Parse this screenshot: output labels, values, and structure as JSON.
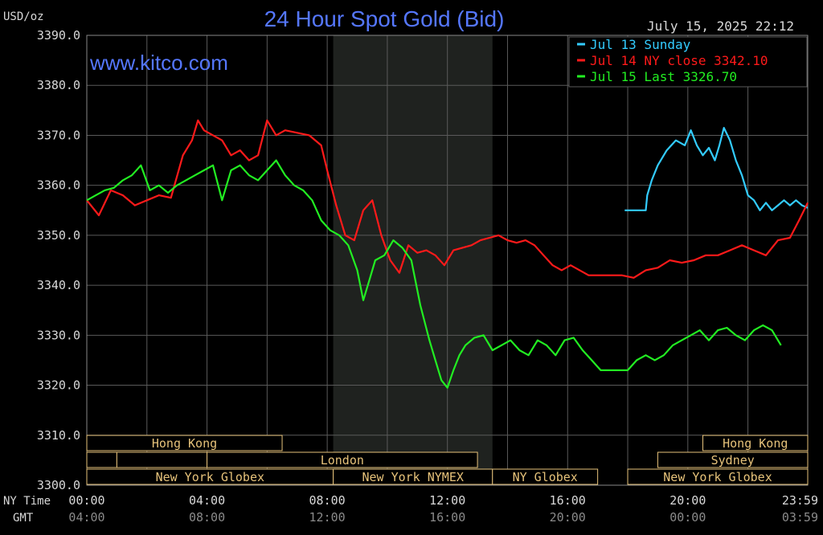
{
  "chart_data": {
    "type": "line",
    "title": "24 Hour Spot Gold (Bid)",
    "unit_label": "USD/oz",
    "watermark": "www.kitco.com",
    "timestamp": "July 15, 2025 22:12",
    "ylim": [
      3300,
      3390
    ],
    "y_ticks": [
      "3390.0",
      "3380.0",
      "3370.0",
      "3360.0",
      "3350.0",
      "3340.0",
      "3330.0",
      "3320.0",
      "3310.0",
      "3300.0"
    ],
    "x_axis_labels": {
      "ny_time": "NY Time",
      "gmt": "GMT"
    },
    "x_ticks_ny": [
      "00:00",
      "04:00",
      "08:00",
      "12:00",
      "16:00",
      "20:00",
      "23:59"
    ],
    "x_ticks_gmt": [
      "04:00",
      "08:00",
      "12:00",
      "16:00",
      "20:00",
      "00:00",
      "03:59"
    ],
    "nymex_shade_hours": [
      8.2,
      13.5
    ],
    "legend_placement": "top-right",
    "colors": {
      "jul13": "#33ccff",
      "jul14": "#ff1a1a",
      "jul15": "#22ee22",
      "title": "#5577ff",
      "grid": "#5a5a5a",
      "axis_text": "#d8d8d8",
      "session": "#e6c27a"
    },
    "series": [
      {
        "name": "Jul 13 Sunday",
        "legend_text": "Jul 13 Sunday",
        "color_key": "jul13",
        "x": [
          17.9,
          18.6,
          18.65,
          18.8,
          19.0,
          19.3,
          19.6,
          19.9,
          20.1,
          20.3,
          20.5,
          20.7,
          20.9,
          21.05,
          21.2,
          21.4,
          21.6,
          21.8,
          22.0,
          22.2,
          22.4,
          22.6,
          22.8,
          23.0,
          23.2,
          23.4,
          23.6,
          23.8,
          23.99
        ],
        "y": [
          3355.0,
          3355.0,
          3358.0,
          3361.0,
          3364.0,
          3367.0,
          3369.0,
          3368.0,
          3371.0,
          3368.0,
          3366.0,
          3367.5,
          3365.0,
          3368.0,
          3371.5,
          3369.0,
          3365.0,
          3362.0,
          3358.0,
          3357.0,
          3355.0,
          3356.5,
          3355.0,
          3356.0,
          3357.0,
          3356.0,
          3357.0,
          3356.0,
          3355.5
        ]
      },
      {
        "name": "Jul 14 NY close 3342.10",
        "legend_text": "Jul 14 NY close 3342.10",
        "color_key": "jul14",
        "x": [
          0,
          0.4,
          0.8,
          1.2,
          1.6,
          2.0,
          2.4,
          2.8,
          3.2,
          3.5,
          3.7,
          3.9,
          4.2,
          4.5,
          4.8,
          5.1,
          5.4,
          5.7,
          6.0,
          6.3,
          6.6,
          7.0,
          7.4,
          7.8,
          8.0,
          8.3,
          8.6,
          8.9,
          9.2,
          9.5,
          9.8,
          10.1,
          10.4,
          10.7,
          11.0,
          11.3,
          11.6,
          11.9,
          12.2,
          12.5,
          12.8,
          13.1,
          13.4,
          13.7,
          14.0,
          14.3,
          14.6,
          14.9,
          15.2,
          15.5,
          15.8,
          16.1,
          16.4,
          16.7,
          17.0,
          17.4,
          17.8,
          18.2,
          18.6,
          19.0,
          19.4,
          19.8,
          20.2,
          20.6,
          21.0,
          21.4,
          21.8,
          22.2,
          22.6,
          23.0,
          23.4,
          23.7,
          23.99
        ],
        "y": [
          3357.0,
          3354.0,
          3359.0,
          3358.0,
          3356.0,
          3357.0,
          3358.0,
          3357.5,
          3366.0,
          3369.0,
          3373.0,
          3371.0,
          3370.0,
          3369.0,
          3366.0,
          3367.0,
          3365.0,
          3366.0,
          3373.0,
          3370.0,
          3371.0,
          3370.5,
          3370.0,
          3368.0,
          3363.0,
          3356.0,
          3350.0,
          3349.0,
          3355.0,
          3357.0,
          3350.0,
          3345.0,
          3342.5,
          3348.0,
          3346.5,
          3347.0,
          3346.0,
          3344.0,
          3347.0,
          3347.5,
          3348.0,
          3349.0,
          3349.5,
          3350.0,
          3349.0,
          3348.5,
          3349.0,
          3348.0,
          3346.0,
          3344.0,
          3343.0,
          3344.0,
          3343.0,
          3342.0,
          3342.0,
          3342.0,
          3342.0,
          3341.5,
          3343.0,
          3343.5,
          3345.0,
          3344.5,
          3345.0,
          3346.0,
          3346.0,
          3347.0,
          3348.0,
          3347.0,
          3346.0,
          3349.0,
          3349.5,
          3353.0,
          3356.5
        ]
      },
      {
        "name": "Jul 15 Last 3326.70",
        "legend_text": "Jul 15 Last 3326.70",
        "color_key": "jul15",
        "x": [
          0,
          0.3,
          0.6,
          0.9,
          1.2,
          1.5,
          1.8,
          2.1,
          2.4,
          2.7,
          3.0,
          3.3,
          3.6,
          3.9,
          4.2,
          4.5,
          4.8,
          5.1,
          5.4,
          5.7,
          6.0,
          6.3,
          6.6,
          6.9,
          7.2,
          7.5,
          7.8,
          8.1,
          8.4,
          8.7,
          9.0,
          9.2,
          9.4,
          9.6,
          9.9,
          10.2,
          10.5,
          10.8,
          11.1,
          11.4,
          11.6,
          11.8,
          12.0,
          12.2,
          12.4,
          12.6,
          12.9,
          13.2,
          13.5,
          13.8,
          14.1,
          14.4,
          14.7,
          15.0,
          15.3,
          15.6,
          15.9,
          16.2,
          16.5,
          16.8,
          17.1,
          17.4,
          17.7,
          18.0,
          18.3,
          18.6,
          18.9,
          19.2,
          19.5,
          19.8,
          20.1,
          20.4,
          20.7,
          21.0,
          21.3,
          21.6,
          21.9,
          22.2,
          22.5,
          22.8,
          23.1
        ],
        "y": [
          3357.0,
          3358.0,
          3359.0,
          3359.5,
          3361.0,
          3362.0,
          3364.0,
          3359.0,
          3360.0,
          3358.5,
          3360.0,
          3361.0,
          3362.0,
          3363.0,
          3364.0,
          3357.0,
          3363.0,
          3364.0,
          3362.0,
          3361.0,
          3363.0,
          3365.0,
          3362.0,
          3360.0,
          3359.0,
          3357.0,
          3353.0,
          3351.0,
          3350.0,
          3348.0,
          3343.0,
          3337.0,
          3341.0,
          3345.0,
          3346.0,
          3349.0,
          3347.5,
          3345.0,
          3336.0,
          3329.0,
          3325.0,
          3321.0,
          3319.5,
          3323.0,
          3326.0,
          3328.0,
          3329.5,
          3330.0,
          3327.0,
          3328.0,
          3329.0,
          3327.0,
          3326.0,
          3329.0,
          3328.0,
          3326.0,
          3329.0,
          3329.5,
          3327.0,
          3325.0,
          3323.0,
          3323.0,
          3323.0,
          3323.0,
          3325.0,
          3326.0,
          3325.0,
          3326.0,
          3328.0,
          3329.0,
          3330.0,
          3331.0,
          3329.0,
          3331.0,
          3331.5,
          3330.0,
          3329.0,
          3331.0,
          3332.0,
          3331.0,
          3328.0
        ]
      }
    ]
  },
  "sessions": [
    {
      "label": "Hong Kong",
      "row": 0,
      "start": 0,
      "end": 6.5
    },
    {
      "label": "",
      "row": 1,
      "start": 0,
      "end": 1.0
    },
    {
      "label": "",
      "row": 1,
      "start": 1.0,
      "end": 4.0
    },
    {
      "label": "London",
      "row": 1,
      "start": 4.0,
      "end": 13.0
    },
    {
      "label": "New York Globex",
      "row": 2,
      "start": 0,
      "end": 8.2
    },
    {
      "label": "New York NYMEX",
      "row": 2,
      "start": 8.2,
      "end": 13.5
    },
    {
      "label": "NY Globex",
      "row": 2,
      "start": 13.5,
      "end": 17.0
    },
    {
      "label": "Hong Kong",
      "row": 0,
      "start": 20.5,
      "end": 23.99
    },
    {
      "label": "Sydney",
      "row": 1,
      "start": 19.0,
      "end": 23.99
    },
    {
      "label": "New York Globex",
      "row": 2,
      "start": 18.0,
      "end": 23.99
    }
  ]
}
